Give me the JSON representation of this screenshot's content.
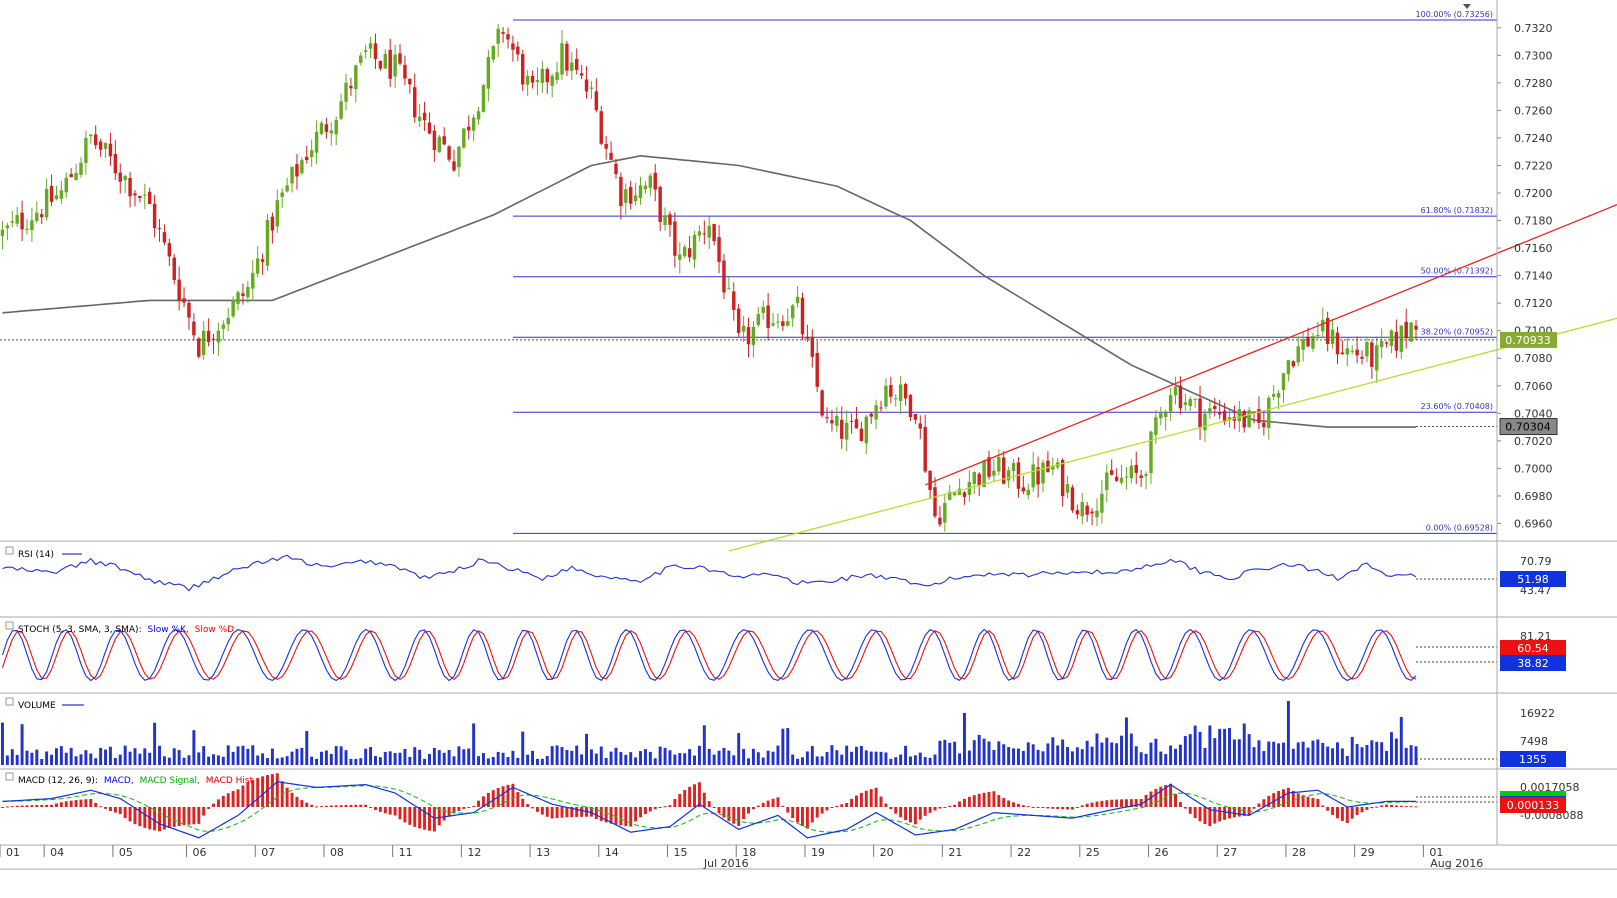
{
  "chart_data": {
    "type": "candlestick",
    "instrument_prices": {
      "price_axis_ticks": [
        "0.7320",
        "0.7300",
        "0.7280",
        "0.7260",
        "0.7240",
        "0.7220",
        "0.7200",
        "0.7180",
        "0.7160",
        "0.7140",
        "0.7120",
        "0.7100",
        "0.7080",
        "0.7060",
        "0.7040",
        "0.7020",
        "0.7000",
        "0.6980",
        "0.6960"
      ],
      "last_price": "0.70933",
      "ma_last": "0.70304",
      "fibonacci": [
        {
          "label": "100.00% (0.73256)",
          "level": 0.73256
        },
        {
          "label": "61.80% (0.71832)",
          "level": 0.71832
        },
        {
          "label": "50.00% (0.71392)",
          "level": 0.71392
        },
        {
          "label": "38.20% (0.70952)",
          "level": 0.70952
        },
        {
          "label": "23.60% (0.70408)",
          "level": 0.70408
        },
        {
          "label": "0.00% (0.69528)",
          "level": 0.69528
        }
      ],
      "y_range": [
        0.6948,
        0.733
      ],
      "red_trendline": {
        "from_bar": 188,
        "from_price": 0.6988,
        "to_bar": 330,
        "to_price": 0.7193
      },
      "green_trendline": {
        "from_bar": 148,
        "from_price": 0.694,
        "to_bar": 330,
        "to_price": 0.711
      },
      "anchors": [
        [
          0,
          0.717
        ],
        [
          6,
          0.7185
        ],
        [
          12,
          0.72
        ],
        [
          18,
          0.724
        ],
        [
          24,
          0.7215
        ],
        [
          30,
          0.719
        ],
        [
          35,
          0.714
        ],
        [
          40,
          0.709
        ],
        [
          45,
          0.711
        ],
        [
          50,
          0.713
        ],
        [
          56,
          0.719
        ],
        [
          62,
          0.723
        ],
        [
          68,
          0.726
        ],
        [
          74,
          0.73
        ],
        [
          80,
          0.729
        ],
        [
          86,
          0.725
        ],
        [
          92,
          0.7225
        ],
        [
          97,
          0.727
        ],
        [
          102,
          0.732
        ],
        [
          108,
          0.727
        ],
        [
          114,
          0.73
        ],
        [
          120,
          0.727
        ],
        [
          126,
          0.72
        ],
        [
          132,
          0.7205
        ],
        [
          138,
          0.715
        ],
        [
          144,
          0.718
        ],
        [
          150,
          0.709
        ],
        [
          156,
          0.711
        ],
        [
          162,
          0.7115
        ],
        [
          168,
          0.703
        ],
        [
          174,
          0.7025
        ],
        [
          180,
          0.706
        ],
        [
          186,
          0.7045
        ],
        [
          190,
          0.6965
        ],
        [
          196,
          0.699
        ],
        [
          202,
          0.7
        ],
        [
          208,
          0.699
        ],
        [
          214,
          0.7
        ],
        [
          220,
          0.697
        ],
        [
          226,
          0.699
        ],
        [
          232,
          0.6995
        ],
        [
          238,
          0.706
        ],
        [
          244,
          0.704
        ],
        [
          250,
          0.704
        ],
        [
          256,
          0.703
        ],
        [
          262,
          0.708
        ],
        [
          268,
          0.71
        ],
        [
          274,
          0.7085
        ],
        [
          280,
          0.708
        ],
        [
          286,
          0.71
        ],
        [
          288,
          0.711
        ]
      ]
    },
    "moving_average_anchors": [
      [
        0,
        0.7113
      ],
      [
        30,
        0.7122
      ],
      [
        55,
        0.7122
      ],
      [
        100,
        0.7184
      ],
      [
        120,
        0.722
      ],
      [
        130,
        0.7227
      ],
      [
        150,
        0.722
      ],
      [
        170,
        0.7205
      ],
      [
        185,
        0.718
      ],
      [
        200,
        0.714
      ],
      [
        230,
        0.7075
      ],
      [
        255,
        0.7035
      ],
      [
        270,
        0.703
      ],
      [
        288,
        0.703
      ]
    ],
    "x_axis": {
      "days": [
        {
          "label": "01",
          "bar": 0
        },
        {
          "label": "04",
          "bar": 9
        },
        {
          "label": "05",
          "bar": 23
        },
        {
          "label": "06",
          "bar": 38
        },
        {
          "label": "07",
          "bar": 52
        },
        {
          "label": "08",
          "bar": 66
        },
        {
          "label": "11",
          "bar": 80
        },
        {
          "label": "12",
          "bar": 94
        },
        {
          "label": "13",
          "bar": 108
        },
        {
          "label": "14",
          "bar": 122
        },
        {
          "label": "15",
          "bar": 136
        },
        {
          "label": "18",
          "bar": 150
        },
        {
          "label": "19",
          "bar": 164
        },
        {
          "label": "20",
          "bar": 178
        },
        {
          "label": "21",
          "bar": 192
        },
        {
          "label": "22",
          "bar": 206
        },
        {
          "label": "25",
          "bar": 220
        },
        {
          "label": "26",
          "bar": 234
        },
        {
          "label": "27",
          "bar": 248
        },
        {
          "label": "28",
          "bar": 262
        },
        {
          "label": "29",
          "bar": 276
        },
        {
          "label": "01",
          "bar": 290
        }
      ],
      "month_labels": [
        {
          "label": "Jul 2016",
          "bar": 143
        },
        {
          "label": "Aug 2016",
          "bar": 291
        }
      ],
      "total_bars": 305
    },
    "rsi": {
      "title": "RSI (14)",
      "ticks": [
        "70.79",
        "43.47"
      ],
      "last": "51.98",
      "anchors": [
        [
          0,
          62
        ],
        [
          10,
          56
        ],
        [
          18,
          70
        ],
        [
          24,
          62
        ],
        [
          30,
          48
        ],
        [
          38,
          38
        ],
        [
          44,
          52
        ],
        [
          52,
          68
        ],
        [
          58,
          74
        ],
        [
          66,
          62
        ],
        [
          74,
          70
        ],
        [
          80,
          64
        ],
        [
          86,
          50
        ],
        [
          92,
          58
        ],
        [
          98,
          72
        ],
        [
          104,
          60
        ],
        [
          110,
          50
        ],
        [
          116,
          62
        ],
        [
          122,
          52
        ],
        [
          130,
          48
        ],
        [
          136,
          62
        ],
        [
          142,
          64
        ],
        [
          150,
          50
        ],
        [
          156,
          56
        ],
        [
          162,
          44
        ],
        [
          168,
          46
        ],
        [
          176,
          54
        ],
        [
          182,
          48
        ],
        [
          188,
          40
        ],
        [
          194,
          50
        ],
        [
          202,
          56
        ],
        [
          210,
          54
        ],
        [
          218,
          58
        ],
        [
          226,
          56
        ],
        [
          232,
          62
        ],
        [
          238,
          72
        ],
        [
          244,
          58
        ],
        [
          250,
          50
        ],
        [
          256,
          60
        ],
        [
          262,
          66
        ],
        [
          268,
          58
        ],
        [
          272,
          50
        ],
        [
          278,
          68
        ],
        [
          282,
          52
        ]
      ]
    },
    "stoch": {
      "title": "STOCH (5, 3, SMA, 3, SMA):",
      "k_label": "Slow %K,",
      "d_label": "Slow %D",
      "ticks": [
        "81.21"
      ],
      "k_last": "38.82",
      "d_last": "60.54"
    },
    "volume": {
      "title": "VOLUME",
      "ticks": [
        "16922",
        "7498"
      ],
      "last": "1355"
    },
    "macd": {
      "title": "MACD (12, 26, 9):",
      "macd_label": "MACD,",
      "signal_label": "MACD Signal,",
      "hist_label": "MACD Hist",
      "ticks": [
        "0.0017058",
        "-0.0008088"
      ],
      "macd_last": "0.000133",
      "anchors": [
        [
          0,
          0.0004
        ],
        [
          10,
          0.0006
        ],
        [
          18,
          0.0012
        ],
        [
          24,
          0.0006
        ],
        [
          32,
          -0.0012
        ],
        [
          40,
          -0.0022
        ],
        [
          48,
          -0.0006
        ],
        [
          56,
          0.0018
        ],
        [
          64,
          0.0014
        ],
        [
          74,
          0.0016
        ],
        [
          80,
          0.001
        ],
        [
          88,
          -0.0008
        ],
        [
          96,
          -0.0004
        ],
        [
          104,
          0.0014
        ],
        [
          112,
          0.0002
        ],
        [
          120,
          -0.0004
        ],
        [
          128,
          -0.0018
        ],
        [
          136,
          -0.0014
        ],
        [
          142,
          0.0002
        ],
        [
          150,
          -0.0016
        ],
        [
          158,
          -0.0006
        ],
        [
          164,
          -0.0022
        ],
        [
          172,
          -0.0016
        ],
        [
          178,
          -0.0004
        ],
        [
          186,
          -0.002
        ],
        [
          194,
          -0.0016
        ],
        [
          202,
          -0.0004
        ],
        [
          210,
          -0.0006
        ],
        [
          218,
          -0.0008
        ],
        [
          226,
          -0.0002
        ],
        [
          232,
          0.0002
        ],
        [
          238,
          0.0016
        ],
        [
          246,
          -0.0002
        ],
        [
          254,
          -0.0006
        ],
        [
          262,
          0.001
        ],
        [
          268,
          0.0012
        ],
        [
          274,
          0.0
        ],
        [
          282,
          0.0004
        ]
      ]
    }
  }
}
